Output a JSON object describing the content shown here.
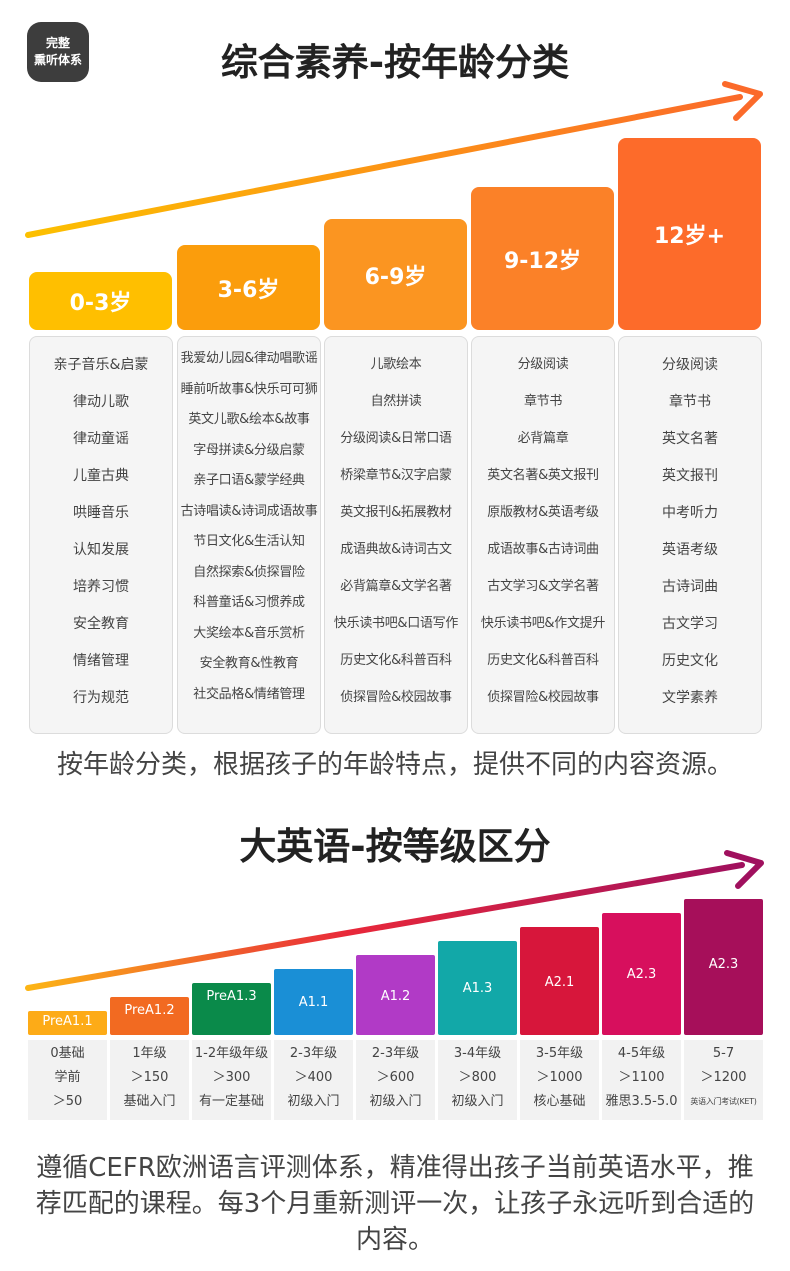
{
  "badge": {
    "line1": "完整",
    "line2": "熏听体系"
  },
  "section1": {
    "title": "综合素养-按年龄分类",
    "caption": "按年龄分类，根据孩子的年龄特点，提供不同的内容资源。",
    "columns": [
      {
        "label": "0-3岁",
        "color": "#ffbf00",
        "items": [
          "亲子音乐&启蒙",
          "律动儿歌",
          "律动童谣",
          "儿童古典",
          "哄睡音乐",
          "认知发展",
          "培养习惯",
          "安全教育",
          "情绪管理",
          "行为规范"
        ]
      },
      {
        "label": "3-6岁",
        "color": "#fb9d0c",
        "items": [
          "我爱幼儿园&律动唱歌谣",
          "睡前听故事&快乐可可狮",
          "英文儿歌&绘本&故事",
          "字母拼读&分级启蒙",
          "亲子口语&蒙学经典",
          "古诗唱读&诗词成语故事",
          "节日文化&生活认知",
          "自然探索&侦探冒险",
          "科普童话&习惯养成",
          "大奖绘本&音乐赏析",
          "安全教育&性教育",
          "社交品格&情绪管理"
        ]
      },
      {
        "label": "6-9岁",
        "color": "#fb9521",
        "items": [
          "儿歌绘本",
          "自然拼读",
          "分级阅读&日常口语",
          "桥梁章节&汉字启蒙",
          "英文报刊&拓展教材",
          "成语典故&诗词古文",
          "必背篇章&文学名著",
          "快乐读书吧&口语写作",
          "历史文化&科普百科",
          "侦探冒险&校园故事"
        ]
      },
      {
        "label": "9-12岁",
        "color": "#fb8128",
        "items": [
          "分级阅读",
          "章节书",
          "必背篇章",
          "英文名著&英文报刊",
          "原版教材&英语考级",
          "成语故事&古诗词曲",
          "古文学习&文学名著",
          "快乐读书吧&作文提升",
          "历史文化&科普百科",
          "侦探冒险&校园故事"
        ]
      },
      {
        "label": "12岁+",
        "color": "#fd6b2a",
        "items": [
          "分级阅读",
          "章节书",
          "英文名著",
          "英文报刊",
          "中考听力",
          "英语考级",
          "古诗词曲",
          "古文学习",
          "历史文化",
          "文学素养"
        ]
      }
    ]
  },
  "section2": {
    "title": "大英语-按等级区分",
    "caption": "遵循CEFR欧洲语言评测体系，精准得出孩子当前英语水平，推荐匹配的课程。每3个月重新测评一次，让孩子永远听到合适的内容。",
    "levels": [
      {
        "label": "PreA1.1",
        "color": "#fdab17",
        "lines": [
          "0基础",
          "学前",
          "＞50"
        ]
      },
      {
        "label": "PreA1.2",
        "color": "#f26a21",
        "lines": [
          "1年级",
          "＞150",
          "基础入门"
        ]
      },
      {
        "label": "PreA1.3",
        "color": "#0a8a4a",
        "lines": [
          "1-2年级年级",
          "＞300",
          "有一定基础"
        ]
      },
      {
        "label": "A1.1",
        "color": "#1a8fd6",
        "lines": [
          "2-3年级",
          "＞400",
          "初级入门"
        ]
      },
      {
        "label": "A1.2",
        "color": "#b13ac6",
        "lines": [
          "2-3年级",
          "＞600",
          "初级入门"
        ]
      },
      {
        "label": "A1.3",
        "color": "#12a8a8",
        "lines": [
          "3-4年级",
          "＞800",
          "初级入门"
        ]
      },
      {
        "label": "A2.1",
        "color": "#d7163b",
        "lines": [
          "3-5年级",
          "＞1000",
          "核心基础"
        ]
      },
      {
        "label": "A2.3",
        "color": "#d70f5d",
        "lines": [
          "4-5年级",
          "＞1100",
          "雅思3.5-5.0"
        ]
      },
      {
        "label": "A2.3",
        "color": "#a60f5a",
        "lines": [
          "5-7",
          "＞1200",
          "英语入门考试(KET)"
        ]
      }
    ]
  }
}
